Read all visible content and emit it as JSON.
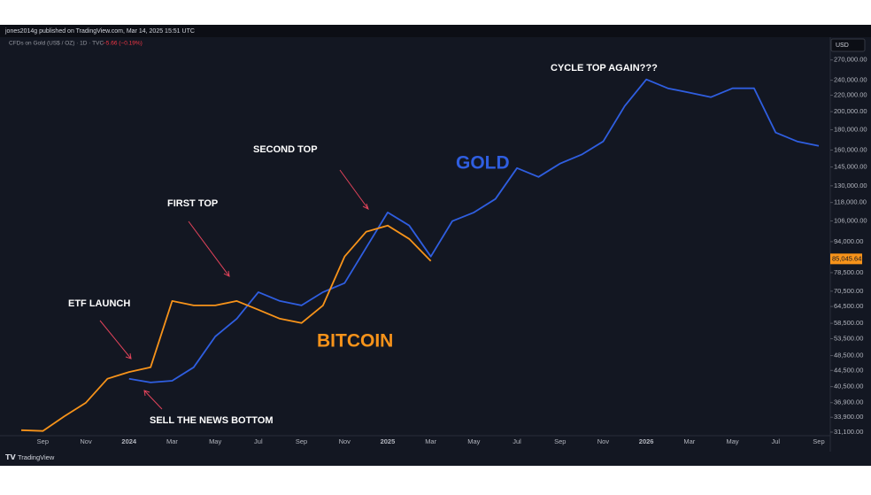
{
  "header": "jones2014g published on TradingView.com, Mar 14, 2025 15:51 UTC",
  "symbol": "CFDs on Gold (US$ / OZ) · 1D · TVC",
  "change": "−5.66 (−0.19%)",
  "currency": "USD",
  "footer": "TradingView",
  "chart_data": {
    "type": "line",
    "log_scale": true,
    "grid": false,
    "categories": [
      null,
      "Sep",
      null,
      "Nov",
      null,
      "2024",
      null,
      "Mar",
      null,
      "May",
      null,
      "Jul",
      null,
      "Sep",
      null,
      "Nov",
      null,
      "2025",
      null,
      "Mar",
      null,
      "May",
      null,
      "Jul",
      null,
      "Sep",
      null,
      "Nov",
      null,
      "2026",
      null,
      "Mar",
      null,
      "May",
      null,
      "Jul",
      null,
      "Sep"
    ],
    "series": [
      {
        "name": "GOLD",
        "color": "#2f5ee0",
        "values": [
          null,
          null,
          null,
          null,
          null,
          42400,
          41500,
          41900,
          45300,
          54200,
          60100,
          70100,
          66600,
          64900,
          70100,
          73900,
          90700,
          111400,
          103200,
          86200,
          105900,
          111400,
          120400,
          144100,
          136900,
          147900,
          155800,
          168200,
          206700,
          241100,
          229000,
          223300,
          217500,
          229000,
          229000,
          177100,
          168200,
          163900
        ]
      },
      {
        "name": "BITCOIN",
        "color": "#f7931a",
        "values": [
          31450,
          31300,
          34100,
          36900,
          42400,
          44100,
          45300,
          66600,
          64900,
          64900,
          66600,
          63300,
          60100,
          58600,
          64900,
          86200,
          99500,
          103200,
          95500,
          84000,
          null,
          null,
          null,
          null,
          null,
          null,
          null,
          null,
          null,
          null,
          null,
          null,
          null,
          null,
          null,
          null,
          null,
          null
        ]
      }
    ],
    "ylim": [
      30150,
      305000
    ],
    "yticks": [
      {
        "value": 31100,
        "label": "31,100.00"
      },
      {
        "value": 33900,
        "label": "33,900.00"
      },
      {
        "value": 36900,
        "label": "36,900.00"
      },
      {
        "value": 40500,
        "label": "40,500.00"
      },
      {
        "value": 44500,
        "label": "44,500.00"
      },
      {
        "value": 48500,
        "label": "48,500.00"
      },
      {
        "value": 53500,
        "label": "53,500.00"
      },
      {
        "value": 58500,
        "label": "58,500.00"
      },
      {
        "value": 64500,
        "label": "64,500.00"
      },
      {
        "value": 70500,
        "label": "70,500.00"
      },
      {
        "value": 78500,
        "label": "78,500.00"
      },
      {
        "value": 94000,
        "label": "94,000.00"
      },
      {
        "value": 106000,
        "label": "106,000.00"
      },
      {
        "value": 118000,
        "label": "118,000.00"
      },
      {
        "value": 130000,
        "label": "130,000.00"
      },
      {
        "value": 145000,
        "label": "145,000.00"
      },
      {
        "value": 160000,
        "label": "160,000.00"
      },
      {
        "value": 180000,
        "label": "180,000.00"
      },
      {
        "value": 200000,
        "label": "200,000.00"
      },
      {
        "value": 220000,
        "label": "220,000.00"
      },
      {
        "value": 240000,
        "label": "240,000.00"
      },
      {
        "value": 270000,
        "label": "270,000.00"
      }
    ],
    "last_price": {
      "value": 85045.64,
      "label": "85,045.64"
    },
    "annotations": [
      "CYCLE TOP AGAIN???",
      "SECOND TOP",
      "FIRST TOP",
      "ETF LAUNCH",
      "SELL THE NEWS BOTTOM"
    ]
  }
}
